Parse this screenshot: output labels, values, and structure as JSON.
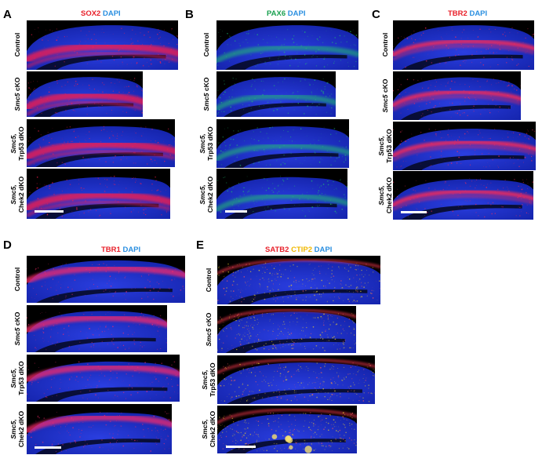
{
  "panels": [
    {
      "id": "A",
      "stains": [
        {
          "text": "SOX2",
          "color": "#e8202a"
        },
        {
          "text": " DAPI",
          "color": "#2a8fe0"
        }
      ],
      "rows": [
        {
          "gene": "",
          "label": "Control"
        },
        {
          "gene": "Smc5",
          "label": " cKO"
        },
        {
          "gene": "Smc5,",
          "label": "Trp53 dKO"
        },
        {
          "gene": "Smc5,",
          "label": "Chek2 dKO"
        }
      ]
    },
    {
      "id": "B",
      "stains": [
        {
          "text": "PAX6",
          "color": "#1aa050"
        },
        {
          "text": " DAPI",
          "color": "#2a8fe0"
        }
      ],
      "rows": [
        {
          "gene": "",
          "label": "Control"
        },
        {
          "gene": "Smc5",
          "label": " cKO"
        },
        {
          "gene": "Smc5,",
          "label": "Trp53 dKO"
        },
        {
          "gene": "Smc5,",
          "label": "Chek2 dKO"
        }
      ]
    },
    {
      "id": "C",
      "stains": [
        {
          "text": "TBR2",
          "color": "#e8202a"
        },
        {
          "text": " DAPI",
          "color": "#2a8fe0"
        }
      ],
      "rows": [
        {
          "gene": "",
          "label": "Control"
        },
        {
          "gene": "Smc5",
          "label": " cKO"
        },
        {
          "gene": "Smc5,",
          "label": "Trp53 dKO"
        },
        {
          "gene": "Smc5,",
          "label": "Chek2 dKO"
        }
      ]
    },
    {
      "id": "D",
      "stains": [
        {
          "text": "TBR1",
          "color": "#e8202a"
        },
        {
          "text": " DAPI",
          "color": "#2a8fe0"
        }
      ],
      "rows": [
        {
          "gene": "",
          "label": "Control"
        },
        {
          "gene": "Smc5",
          "label": " cKO"
        },
        {
          "gene": "Smc5,",
          "label": "Trp53 dKO"
        },
        {
          "gene": "Smc5,",
          "label": "Chek2 dKO"
        }
      ]
    },
    {
      "id": "E",
      "stains": [
        {
          "text": "SATB2",
          "color": "#e8202a"
        },
        {
          "text": " CTIP2",
          "color": "#f0b800"
        },
        {
          "text": " DAPI",
          "color": "#2a8fe0"
        }
      ],
      "rows": [
        {
          "gene": "",
          "label": "Control"
        },
        {
          "gene": "Smc5",
          "label": " cKO"
        },
        {
          "gene": "Smc5,",
          "label": "Trp53 dKO"
        },
        {
          "gene": "Smc5,",
          "label": "Chek2 dKO"
        }
      ]
    }
  ],
  "colors": {
    "dapi": "#1c2fd0",
    "background": "#000000",
    "scalebar": "#ffffff"
  }
}
